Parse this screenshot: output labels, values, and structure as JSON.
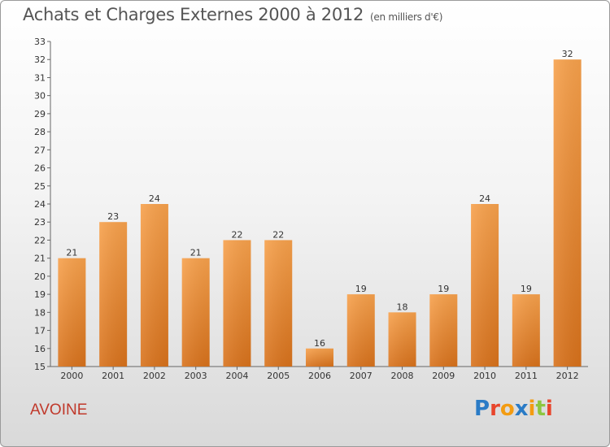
{
  "header": {
    "title": "Achats et Charges Externes 2000 à 2012",
    "unit": "(en milliers d'€)"
  },
  "footer": {
    "town": "AVOINE",
    "logo": "Proxiti",
    "logo_letters": [
      {
        "char": "P",
        "color": "#2a7bc6"
      },
      {
        "char": "r",
        "color": "#e8452c"
      },
      {
        "char": "o",
        "color": "#f39c12"
      },
      {
        "char": "x",
        "color": "#2a7bc6"
      },
      {
        "char": "i",
        "color": "#f39c12"
      },
      {
        "char": "t",
        "color": "#8cc63f"
      },
      {
        "char": "i",
        "color": "#e8452c"
      }
    ]
  },
  "chart_data": {
    "type": "bar",
    "title": "Achats et Charges Externes 2000 à 2012",
    "subtitle": "(en milliers d'€)",
    "categories": [
      "2000",
      "2001",
      "2002",
      "2003",
      "2004",
      "2005",
      "2006",
      "2007",
      "2008",
      "2009",
      "2010",
      "2011",
      "2012"
    ],
    "values": [
      21,
      23,
      24,
      21,
      22,
      22,
      16,
      19,
      18,
      19,
      24,
      19,
      32
    ],
    "ylim": [
      15,
      33
    ],
    "yticks": [
      15,
      16,
      17,
      18,
      19,
      20,
      21,
      22,
      23,
      24,
      25,
      26,
      27,
      28,
      29,
      30,
      31,
      32,
      33
    ],
    "grid": false,
    "bar_color": "#f0913a"
  }
}
